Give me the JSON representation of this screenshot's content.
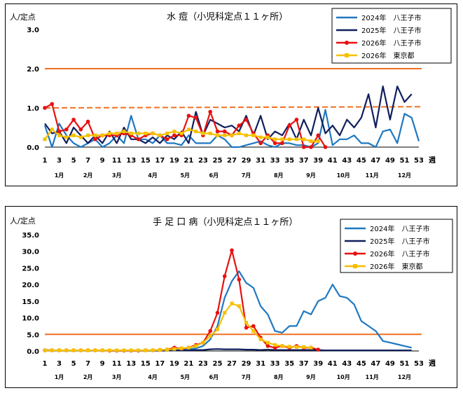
{
  "chart_data": [
    {
      "type": "line",
      "title": "水 痘（小児科定点１１ヶ所）",
      "ylabel": "人/定点",
      "xlabel": "週",
      "ylim": [
        0,
        3.0
      ],
      "yticks": [
        "0.0",
        "1.0",
        "2.0",
        "3.0"
      ],
      "xticks": [
        1,
        3,
        5,
        7,
        9,
        11,
        13,
        15,
        17,
        19,
        21,
        23,
        25,
        27,
        29,
        31,
        33,
        35,
        37,
        39,
        41,
        43,
        45,
        47,
        49,
        51,
        53
      ],
      "months": [
        {
          "label": "1月",
          "week": 3
        },
        {
          "label": "2月",
          "week": 7
        },
        {
          "label": "3月",
          "week": 11
        },
        {
          "label": "4月",
          "week": 16
        },
        {
          "label": "5月",
          "week": 20.5
        },
        {
          "label": "6月",
          "week": 24.5
        },
        {
          "label": "7月",
          "week": 29
        },
        {
          "label": "8月",
          "week": 33.5
        },
        {
          "label": "9月",
          "week": 38
        },
        {
          "label": "10月",
          "week": 42.5
        },
        {
          "label": "11月",
          "week": 46.5
        },
        {
          "label": "12月",
          "week": 51
        }
      ],
      "thresholds": [
        {
          "value": 2.0,
          "style": "solid",
          "color": "#f07020"
        },
        {
          "value": 1.0,
          "value_end": 1.03,
          "style": "dashed",
          "color": "#f07020"
        }
      ],
      "series": [
        {
          "name": "2024年　八王子市",
          "color": "#1f78c1",
          "marker": "none",
          "width": 2.2,
          "values": [
            0.55,
            0.0,
            0.6,
            0.3,
            0.1,
            0.0,
            0.1,
            0.2,
            0.0,
            0.1,
            0.3,
            0.1,
            0.8,
            0.2,
            0.2,
            0.1,
            0.3,
            0.1,
            0.1,
            0.05,
            0.3,
            0.1,
            0.1,
            0.1,
            0.3,
            0.2,
            0.0,
            0.0,
            0.05,
            0.1,
            0.15,
            0.05,
            0.0,
            0.1,
            0.1,
            0.05,
            0.05,
            0.0,
            0.1,
            0.95,
            0.05,
            0.2,
            0.2,
            0.3,
            0.1,
            0.1,
            0.0,
            0.4,
            0.45,
            0.1,
            0.85,
            0.75,
            0.15
          ]
        },
        {
          "name": "2025年　八王子市",
          "color": "#0f1f5c",
          "marker": "none",
          "width": 2.2,
          "values": [
            0.6,
            0.35,
            0.4,
            0.1,
            0.5,
            0.3,
            0.1,
            0.3,
            0.1,
            0.4,
            0.1,
            0.5,
            0.2,
            0.2,
            0.1,
            0.25,
            0.1,
            0.3,
            0.2,
            0.4,
            0.1,
            0.9,
            0.3,
            0.7,
            0.6,
            0.5,
            0.55,
            0.4,
            0.8,
            0.3,
            0.8,
            0.2,
            0.4,
            0.3,
            0.6,
            0.2,
            0.7,
            0.3,
            1.0,
            0.35,
            0.55,
            0.3,
            0.7,
            0.5,
            0.75,
            1.35,
            0.5,
            1.55,
            0.7,
            1.55,
            1.15,
            1.35
          ]
        },
        {
          "name": "2026年　八王子市",
          "color": "#e81010",
          "marker": "circle",
          "width": 2.2,
          "values": [
            1.0,
            1.1,
            0.4,
            0.45,
            0.7,
            0.45,
            0.65,
            0.2,
            0.3,
            0.3,
            0.3,
            0.35,
            0.3,
            0.2,
            0.3,
            0.35,
            0.3,
            0.2,
            0.3,
            0.3,
            0.8,
            0.75,
            0.3,
            0.9,
            0.4,
            0.4,
            0.3,
            0.55,
            0.7,
            0.35,
            0.1,
            0.3,
            0.1,
            0.1,
            0.55,
            0.7,
            0.0,
            0.0,
            0.3,
            0.0
          ]
        },
        {
          "name": "2026年　東京都",
          "color": "#f5c000",
          "marker": "square",
          "width": 2.2,
          "values": [
            0.2,
            0.45,
            0.3,
            0.25,
            0.3,
            0.25,
            0.3,
            0.3,
            0.3,
            0.35,
            0.35,
            0.4,
            0.35,
            0.35,
            0.35,
            0.35,
            0.3,
            0.35,
            0.4,
            0.35,
            0.45,
            0.4,
            0.35,
            0.35,
            0.3,
            0.3,
            0.3,
            0.35,
            0.3,
            0.3,
            0.25,
            0.25,
            0.2,
            0.2,
            0.2,
            0.2,
            0.2,
            0.15,
            0.15
          ]
        }
      ]
    },
    {
      "type": "line",
      "title": "手 足 口 病（小児科定点１１ヶ所）",
      "ylabel": "人/定点",
      "xlabel": "週",
      "ylim": [
        0,
        35.0
      ],
      "yticks": [
        "0.0",
        "5.0",
        "10.0",
        "15.0",
        "20.0",
        "25.0",
        "30.0",
        "35.0"
      ],
      "xticks": [
        1,
        3,
        5,
        7,
        9,
        11,
        13,
        15,
        17,
        19,
        21,
        23,
        25,
        27,
        29,
        31,
        33,
        35,
        37,
        39,
        41,
        43,
        45,
        47,
        49,
        51,
        53
      ],
      "months": [
        {
          "label": "1月",
          "week": 3
        },
        {
          "label": "2月",
          "week": 7
        },
        {
          "label": "3月",
          "week": 11
        },
        {
          "label": "4月",
          "week": 16
        },
        {
          "label": "5月",
          "week": 20.5
        },
        {
          "label": "6月",
          "week": 24.5
        },
        {
          "label": "7月",
          "week": 29
        },
        {
          "label": "8月",
          "week": 33.5
        },
        {
          "label": "9月",
          "week": 38
        },
        {
          "label": "10月",
          "week": 42.5
        },
        {
          "label": "11月",
          "week": 46.5
        },
        {
          "label": "12月",
          "week": 51
        }
      ],
      "thresholds": [
        {
          "value": 5.0,
          "style": "solid",
          "color": "#f07020"
        }
      ],
      "series": [
        {
          "name": "2024年　八王子市",
          "color": "#1f78c1",
          "marker": "none",
          "width": 2.2,
          "values": [
            0.1,
            0.1,
            0.1,
            0.1,
            0.1,
            0.1,
            0.1,
            0.1,
            0.1,
            0.1,
            0.1,
            0.1,
            0.1,
            0.1,
            0.1,
            0.1,
            0.1,
            0.2,
            0.2,
            0.3,
            0.5,
            0.8,
            1.5,
            3.5,
            7.5,
            16.0,
            21.0,
            24.0,
            20.5,
            19.0,
            13.5,
            11.0,
            6.0,
            5.5,
            7.5,
            7.5,
            12.0,
            11.0,
            15.0,
            16.0,
            20.0,
            16.5,
            16.0,
            14.0,
            9.0,
            7.5,
            6.0,
            3.0,
            2.5,
            2.0,
            1.5,
            1.0
          ]
        },
        {
          "name": "2025年　八王子市",
          "color": "#0f1f5c",
          "marker": "none",
          "width": 2.2,
          "values": [
            0.3,
            0.2,
            0.2,
            0.2,
            0.2,
            0.2,
            0.2,
            0.2,
            0.2,
            0.1,
            0.1,
            0.1,
            0.1,
            0.1,
            0.1,
            0.1,
            0.1,
            0.1,
            0.2,
            0.2,
            0.2,
            0.3,
            0.3,
            0.5,
            0.6,
            0.5,
            0.5,
            0.5,
            0.4,
            0.4,
            0.3,
            0.4,
            0.3,
            0.3,
            0.3,
            0.3,
            0.3,
            0.3,
            0.3,
            0.2,
            0.2,
            0.2,
            0.2,
            0.2,
            0.2,
            0.2,
            0.2,
            0.2,
            0.2,
            0.2,
            0.2,
            0.2
          ]
        },
        {
          "name": "2026年　八王子市",
          "color": "#e81010",
          "marker": "circle",
          "width": 2.2,
          "values": [
            0.2,
            0.2,
            0.2,
            0.2,
            0.2,
            0.2,
            0.2,
            0.2,
            0.2,
            0.1,
            0.1,
            0.1,
            0.1,
            0.1,
            0.2,
            0.2,
            0.3,
            0.4,
            1.0,
            0.7,
            1.0,
            1.8,
            2.5,
            6.0,
            11.5,
            22.5,
            30.3,
            21.5,
            7.0,
            7.5,
            4.0,
            1.5,
            1.0,
            1.5,
            1.0,
            1.5,
            1.0,
            1.0,
            0.4
          ]
        },
        {
          "name": "2026年　東京都",
          "color": "#f5c000",
          "marker": "square",
          "width": 2.2,
          "values": [
            0.2,
            0.2,
            0.2,
            0.2,
            0.2,
            0.2,
            0.2,
            0.2,
            0.2,
            0.2,
            0.2,
            0.2,
            0.2,
            0.2,
            0.2,
            0.2,
            0.3,
            0.4,
            0.6,
            0.8,
            1.0,
            1.5,
            2.5,
            4.5,
            6.5,
            11.5,
            14.3,
            13.5,
            8.5,
            6.0,
            3.5,
            2.5,
            1.8,
            1.5,
            1.3,
            1.2,
            1.2,
            1.0
          ]
        }
      ]
    }
  ]
}
